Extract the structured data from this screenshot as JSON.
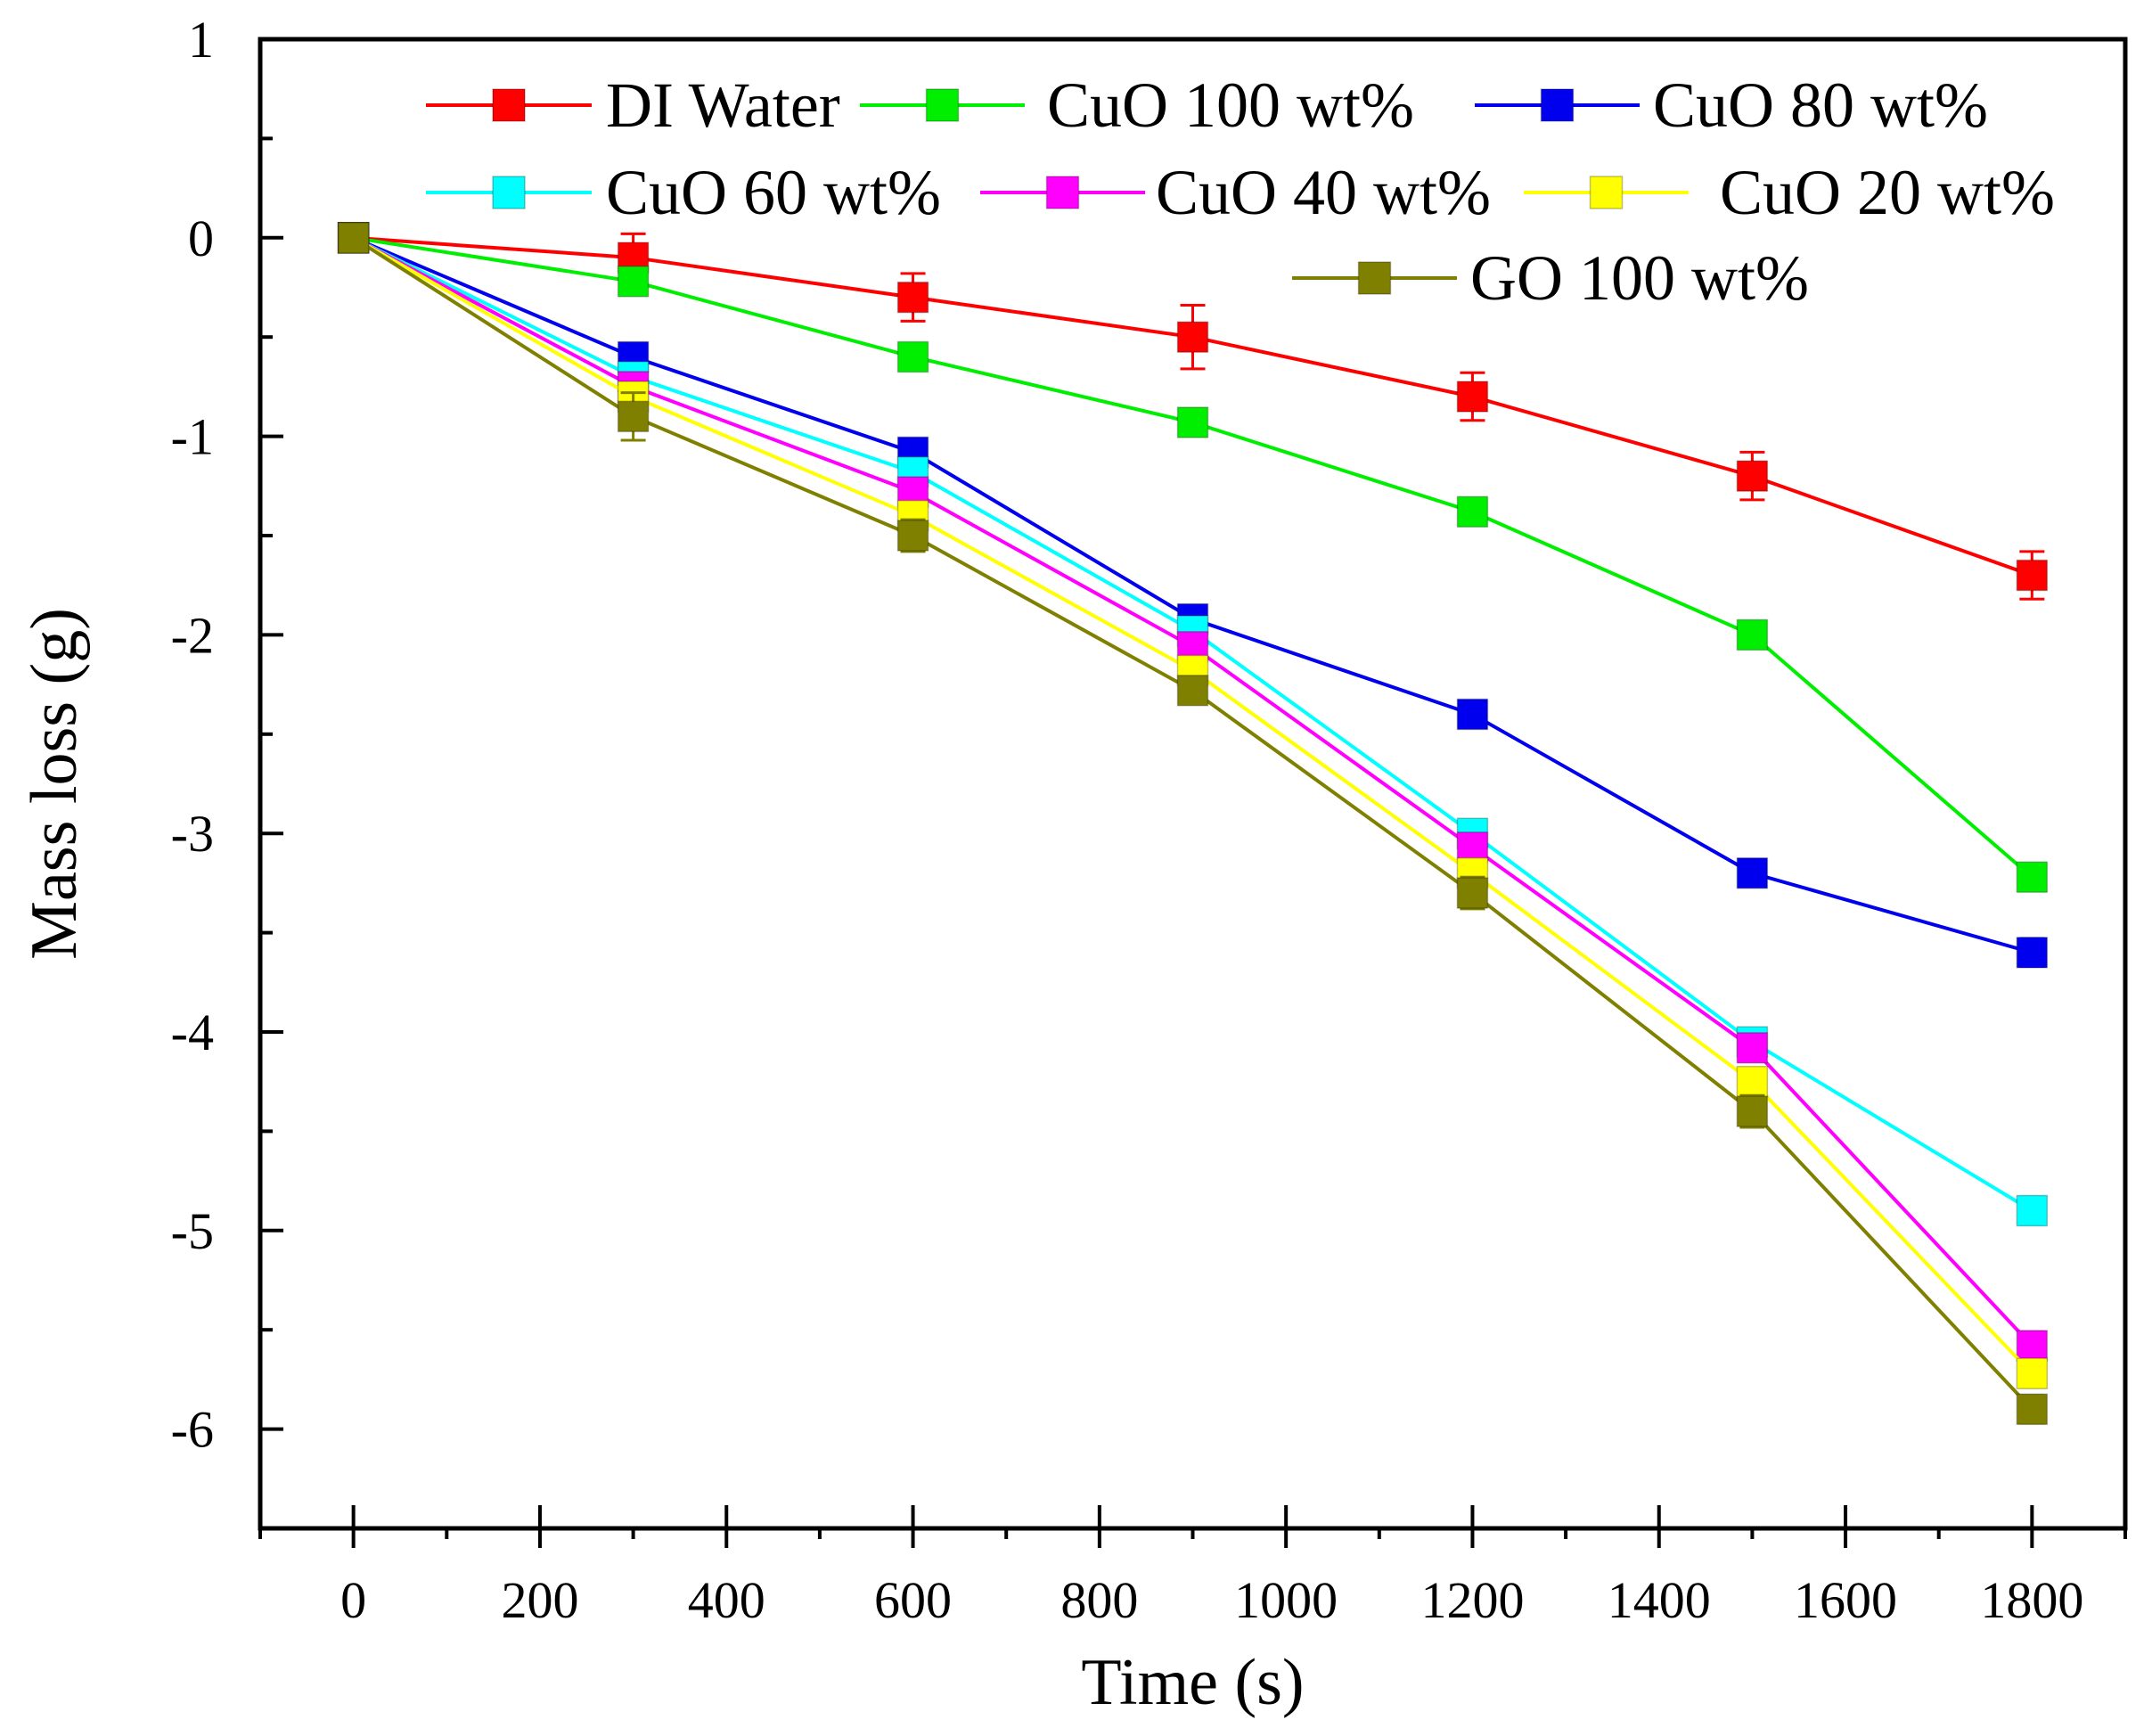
{
  "chart_data": {
    "type": "line",
    "title": "",
    "xlabel": "Time (s)",
    "ylabel": "Mass loss (g)",
    "xlim": [
      -100,
      1900
    ],
    "ylim": [
      -6.5,
      1
    ],
    "xticks": [
      0,
      200,
      400,
      600,
      800,
      1000,
      1200,
      1400,
      1600,
      1800
    ],
    "xtick_labels": [
      "0",
      "200",
      "400",
      "600",
      "800",
      "1000",
      "1200",
      "1400",
      "1600",
      "1800"
    ],
    "yticks": [
      1,
      0,
      -1,
      -2,
      -3,
      -4,
      -5,
      -6
    ],
    "ytick_labels": [
      "1",
      "0",
      "-1",
      "-2",
      "-3",
      "-4",
      "-5",
      "-6"
    ],
    "grid": false,
    "legend_position": "top",
    "x": [
      0,
      300,
      600,
      900,
      1200,
      1500,
      1800
    ],
    "series": [
      {
        "name": "DI Water",
        "color": "#ff0000",
        "values": [
          0,
          -0.1,
          -0.3,
          -0.5,
          -0.8,
          -1.2,
          -1.7
        ],
        "errors": [
          0.05,
          0.12,
          0.12,
          0.16,
          0.12,
          0.12,
          0.12
        ]
      },
      {
        "name": "CuO 100 wt%",
        "color": "#00ee00",
        "values": [
          0,
          -0.22,
          -0.6,
          -0.93,
          -1.38,
          -2.0,
          -3.22
        ],
        "errors": [
          0.05,
          0.06,
          0.06,
          0.06,
          0.06,
          0.06,
          0.06
        ]
      },
      {
        "name": "CuO 80 wt%",
        "color": "#0000ee",
        "values": [
          0,
          -0.6,
          -1.08,
          -1.92,
          -2.4,
          -3.2,
          -3.6
        ],
        "errors": [
          0.05,
          0.06,
          0.06,
          0.06,
          0.06,
          0.06,
          0.07
        ]
      },
      {
        "name": "CuO 60 wt%",
        "color": "#00ffff",
        "values": [
          0,
          -0.7,
          -1.18,
          -1.98,
          -3.0,
          -4.05,
          -4.9
        ],
        "errors": [
          0.05,
          0.06,
          0.06,
          0.06,
          0.06,
          0.06,
          0.07
        ]
      },
      {
        "name": "CuO 40 wt%",
        "color": "#ff00ff",
        "values": [
          0,
          -0.75,
          -1.28,
          -2.06,
          -3.07,
          -4.08,
          -5.58
        ],
        "errors": [
          0.05,
          0.06,
          0.06,
          0.06,
          0.06,
          0.06,
          0.07
        ]
      },
      {
        "name": "CuO 20 wt%",
        "color": "#ffff00",
        "values": [
          0,
          -0.8,
          -1.4,
          -2.18,
          -3.2,
          -4.25,
          -5.72
        ],
        "errors": [
          0.05,
          0.07,
          0.07,
          0.07,
          0.07,
          0.07,
          0.07
        ]
      },
      {
        "name": "GO 100 wt%",
        "color": "#808000",
        "values": [
          0,
          -0.9,
          -1.5,
          -2.28,
          -3.3,
          -4.4,
          -5.9
        ],
        "errors": [
          0.06,
          0.12,
          0.08,
          0.06,
          0.08,
          0.08,
          0.07
        ]
      }
    ]
  }
}
